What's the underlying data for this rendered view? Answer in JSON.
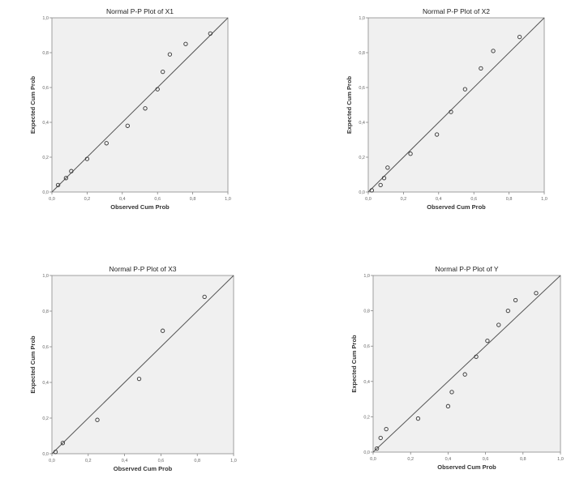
{
  "chart_data": [
    {
      "type": "scatter",
      "title": "Normal P-P Plot of X1",
      "xlabel": "Observed Cum Prob",
      "ylabel": "Expected Cum Prob",
      "xlim": [
        0,
        1
      ],
      "ylim": [
        0,
        1
      ],
      "x_ticks": [
        "0,0",
        "0,2",
        "0,4",
        "0,6",
        "0,8",
        "1,0"
      ],
      "y_ticks": [
        "0,0",
        "0,2",
        "0,4",
        "0,6",
        "0,8",
        "1,0"
      ],
      "reference_line": "y = x",
      "grid": false,
      "points": [
        {
          "x": 0.035,
          "y": 0.04
        },
        {
          "x": 0.08,
          "y": 0.08
        },
        {
          "x": 0.11,
          "y": 0.12
        },
        {
          "x": 0.2,
          "y": 0.19
        },
        {
          "x": 0.31,
          "y": 0.28
        },
        {
          "x": 0.43,
          "y": 0.38
        },
        {
          "x": 0.53,
          "y": 0.48
        },
        {
          "x": 0.6,
          "y": 0.59
        },
        {
          "x": 0.63,
          "y": 0.69
        },
        {
          "x": 0.67,
          "y": 0.79
        },
        {
          "x": 0.76,
          "y": 0.85
        },
        {
          "x": 0.9,
          "y": 0.91
        }
      ]
    },
    {
      "type": "scatter",
      "title": "Normal P-P Plot of X2",
      "xlabel": "Observed Cum Prob",
      "ylabel": "Expected Cum Prob",
      "xlim": [
        0,
        1
      ],
      "ylim": [
        0,
        1
      ],
      "x_ticks": [
        "0,0",
        "0,2",
        "0,4",
        "0,6",
        "0,8",
        "1,0"
      ],
      "y_ticks": [
        "0,0",
        "0,2",
        "0,4",
        "0,6",
        "0,8",
        "1,0"
      ],
      "reference_line": "y = x",
      "grid": false,
      "points": [
        {
          "x": 0.02,
          "y": 0.01
        },
        {
          "x": 0.07,
          "y": 0.04
        },
        {
          "x": 0.09,
          "y": 0.08
        },
        {
          "x": 0.11,
          "y": 0.14
        },
        {
          "x": 0.24,
          "y": 0.22
        },
        {
          "x": 0.39,
          "y": 0.33
        },
        {
          "x": 0.47,
          "y": 0.46
        },
        {
          "x": 0.55,
          "y": 0.59
        },
        {
          "x": 0.64,
          "y": 0.71
        },
        {
          "x": 0.71,
          "y": 0.81
        },
        {
          "x": 0.86,
          "y": 0.89
        }
      ]
    },
    {
      "type": "scatter",
      "title": "Normal P-P Plot of X3",
      "xlabel": "Observed Cum Prob",
      "ylabel": "Expected Cum Prob",
      "xlim": [
        0,
        1
      ],
      "ylim": [
        0,
        1
      ],
      "x_ticks": [
        "0,0",
        "0,2",
        "0,4",
        "0,6",
        "0,8",
        "1,0"
      ],
      "y_ticks": [
        "0,0",
        "0,2",
        "0,4",
        "0,6",
        "0,8",
        "1,0"
      ],
      "reference_line": "y = x",
      "grid": false,
      "points": [
        {
          "x": 0.02,
          "y": 0.01
        },
        {
          "x": 0.06,
          "y": 0.06
        },
        {
          "x": 0.25,
          "y": 0.19
        },
        {
          "x": 0.48,
          "y": 0.42
        },
        {
          "x": 0.61,
          "y": 0.69
        },
        {
          "x": 0.84,
          "y": 0.88
        }
      ]
    },
    {
      "type": "scatter",
      "title": "Normal P-P Plot of Y",
      "xlabel": "Observed Cum Prob",
      "ylabel": "Expected Cum Prob",
      "xlim": [
        0,
        1
      ],
      "ylim": [
        0,
        1
      ],
      "x_ticks": [
        "0,0",
        "0,2",
        "0,4",
        "0,6",
        "0,8",
        "1,0"
      ],
      "y_ticks": [
        "0,0",
        "0,2",
        "0,4",
        "0,6",
        "0,8",
        "1,0"
      ],
      "reference_line": "y = x",
      "grid": false,
      "points": [
        {
          "x": 0.02,
          "y": 0.02
        },
        {
          "x": 0.04,
          "y": 0.08
        },
        {
          "x": 0.07,
          "y": 0.13
        },
        {
          "x": 0.24,
          "y": 0.19
        },
        {
          "x": 0.4,
          "y": 0.26
        },
        {
          "x": 0.42,
          "y": 0.34
        },
        {
          "x": 0.49,
          "y": 0.44
        },
        {
          "x": 0.55,
          "y": 0.54
        },
        {
          "x": 0.61,
          "y": 0.63
        },
        {
          "x": 0.67,
          "y": 0.72
        },
        {
          "x": 0.72,
          "y": 0.8
        },
        {
          "x": 0.76,
          "y": 0.86
        },
        {
          "x": 0.87,
          "y": 0.9
        }
      ]
    }
  ]
}
